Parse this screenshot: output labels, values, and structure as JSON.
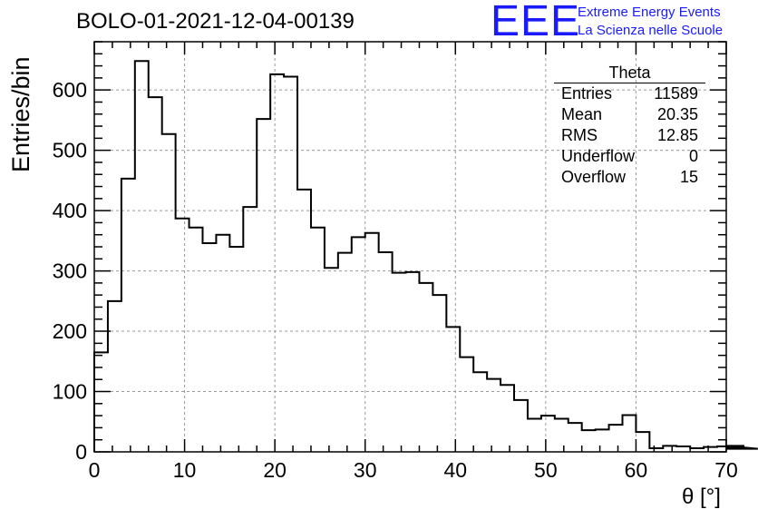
{
  "title": "BOLO-01-2021-12-04-00139",
  "logo": {
    "text": "EEE",
    "line1": "Extreme Energy Events",
    "line2": "La Scienza nelle Scuole",
    "color": "#1a1aff"
  },
  "stats": {
    "title": "Theta",
    "rows": [
      {
        "label": "Entries",
        "value": "11589"
      },
      {
        "label": "Mean",
        "value": "20.35"
      },
      {
        "label": "RMS",
        "value": "12.85"
      },
      {
        "label": "Underflow",
        "value": "0"
      },
      {
        "label": "Overflow",
        "value": "15"
      }
    ]
  },
  "chart_data": {
    "type": "bar",
    "style": "step-histogram",
    "xlabel": "θ [°]",
    "ylabel": "Entries/bin",
    "xlim": [
      0,
      70
    ],
    "ylim": [
      0,
      680
    ],
    "xticks": [
      0,
      10,
      20,
      30,
      40,
      50,
      60,
      70
    ],
    "yticks": [
      0,
      100,
      200,
      300,
      400,
      500,
      600
    ],
    "grid": true,
    "bin_width": 1.5,
    "bin_edges_start": 0,
    "values": [
      165,
      250,
      453,
      648,
      588,
      527,
      387,
      372,
      346,
      360,
      340,
      406,
      552,
      626,
      622,
      435,
      372,
      305,
      330,
      356,
      363,
      331,
      297,
      298,
      280,
      260,
      207,
      157,
      132,
      121,
      111,
      86,
      55,
      60,
      55,
      48,
      36,
      37,
      45,
      61,
      33,
      6,
      10,
      9,
      6,
      8,
      9,
      5,
      10,
      5
    ]
  }
}
